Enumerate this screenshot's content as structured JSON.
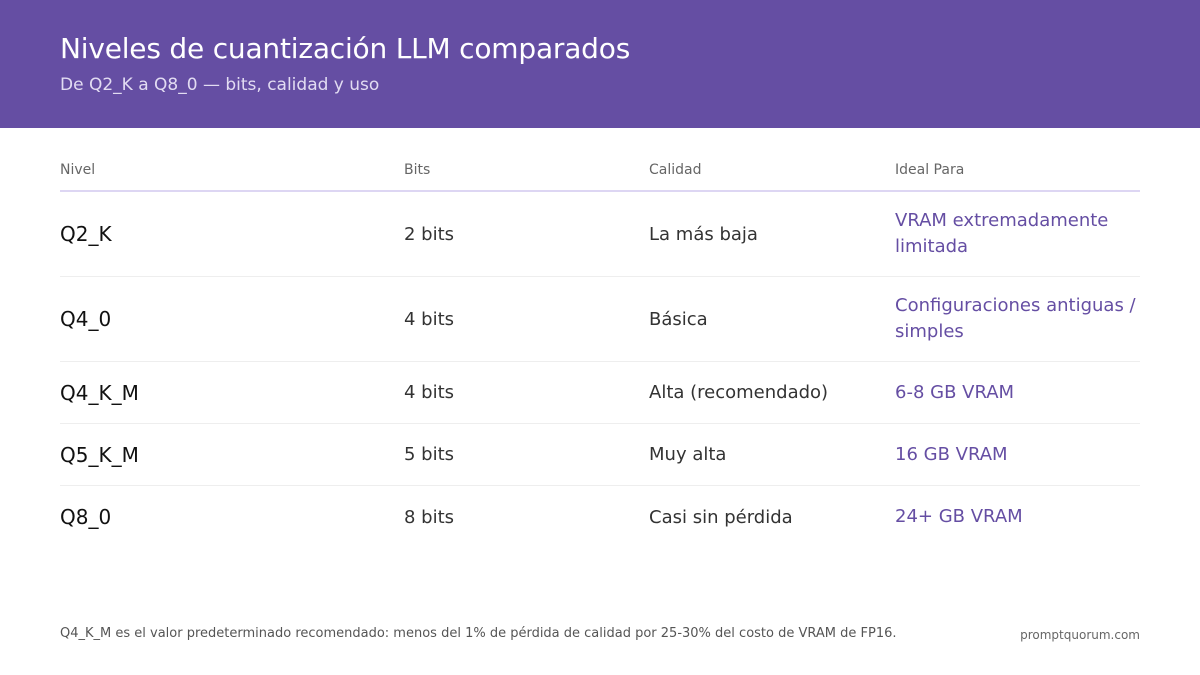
{
  "header": {
    "title": "Niveles de cuantización LLM comparados",
    "subtitle": "De Q2_K a Q8_0 — bits, calidad y uso"
  },
  "table": {
    "columns": [
      "Nivel",
      "Bits",
      "Calidad",
      "Ideal Para"
    ],
    "rows": [
      {
        "level": "Q2_K",
        "bits": "2 bits",
        "quality": "La más baja",
        "ideal": "VRAM extremadamente limitada"
      },
      {
        "level": "Q4_0",
        "bits": "4 bits",
        "quality": "Básica",
        "ideal": "Configuraciones antiguas / simples"
      },
      {
        "level": "Q4_K_M",
        "bits": "4 bits",
        "quality": "Alta (recomendado)",
        "ideal": "6-8 GB VRAM"
      },
      {
        "level": "Q5_K_M",
        "bits": "5 bits",
        "quality": "Muy alta",
        "ideal": "16 GB VRAM"
      },
      {
        "level": "Q8_0",
        "bits": "8 bits",
        "quality": "Casi sin pérdida",
        "ideal": "24+ GB VRAM"
      }
    ]
  },
  "footer": {
    "note": "Q4_K_M es el valor predeterminado recomendado: menos del 1% de pérdida de calidad por 25-30% del costo de VRAM de FP16.",
    "brand": "promptquorum.com"
  },
  "colors": {
    "header_bg": "#654ea3",
    "accent": "#654ea3"
  }
}
